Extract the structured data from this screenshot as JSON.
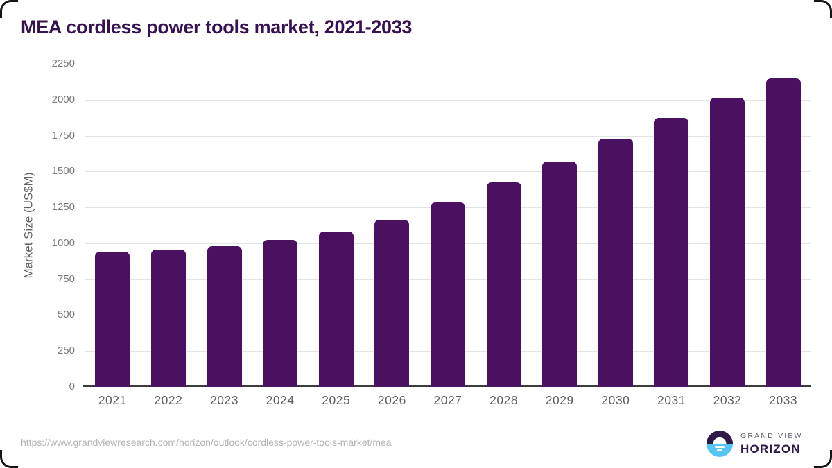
{
  "card": {
    "title": "MEA cordless power tools market, 2021-2033"
  },
  "chart_data": {
    "type": "bar",
    "title": "MEA cordless power tools market, 2021-2033",
    "categories": [
      "2021",
      "2022",
      "2023",
      "2024",
      "2025",
      "2026",
      "2027",
      "2028",
      "2029",
      "2030",
      "2031",
      "2032",
      "2033"
    ],
    "values": [
      940,
      955,
      980,
      1025,
      1080,
      1165,
      1285,
      1425,
      1570,
      1730,
      1875,
      2015,
      2150
    ],
    "xlabel": "",
    "ylabel": "Market Size (US$M)",
    "ylim": [
      0,
      2250
    ],
    "yticks": [
      0,
      250,
      500,
      750,
      1000,
      1250,
      1500,
      1750,
      2000,
      2250
    ],
    "grid": "horizontal",
    "legend_position": "none",
    "bar_color": "#4a1161",
    "unit": "US$M"
  },
  "footer": {
    "source_url": "https://www.grandviewresearch.com/horizon/outlook/cordless-power-tools-market/mea",
    "logo": {
      "top": "GRAND VIEW",
      "bottom": "HORIZON"
    }
  },
  "colors": {
    "title": "#371253",
    "bar": "#4a1161",
    "grid": "#e3e3e3",
    "axis_line": "#3c3c3c",
    "tick_label": "#7a7a7a",
    "x_label": "#5f5f5f",
    "url": "#b3b3b3",
    "logo_dark": "#2e1a47",
    "logo_blue": "#57c5f2"
  }
}
